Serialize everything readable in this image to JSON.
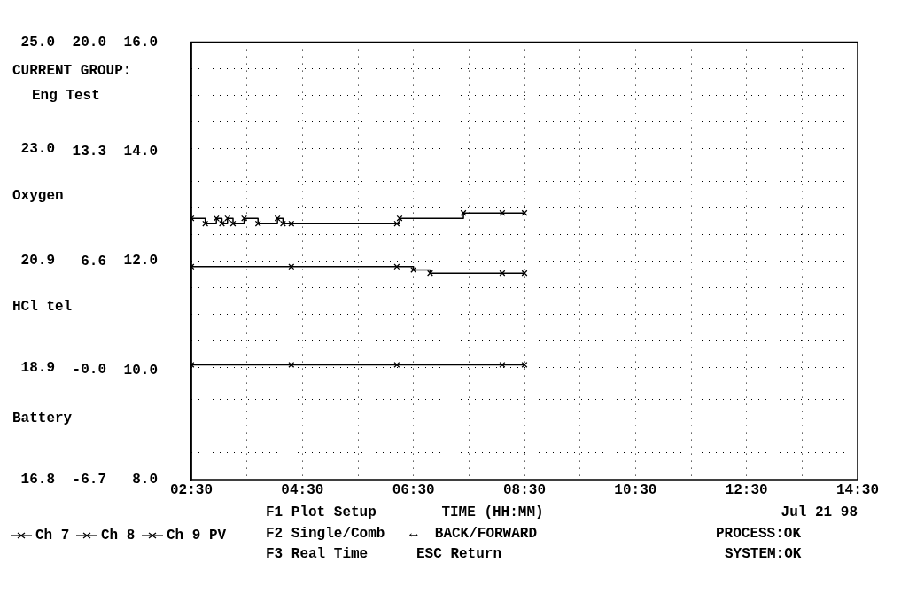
{
  "chart_data": {
    "type": "step",
    "xlabel": "TIME (HH:MM)",
    "series": [
      {
        "name": "Ch 7",
        "color": "#000000",
        "x": [
          2.5,
          2.75,
          2.95,
          3.05,
          3.15,
          3.25,
          3.45,
          3.7,
          4.05,
          4.15,
          4.3,
          6.2,
          6.25,
          7.4,
          8.1,
          8.5
        ],
        "values": [
          21.7,
          21.6,
          21.7,
          21.6,
          21.7,
          21.6,
          21.7,
          21.6,
          21.7,
          21.6,
          21.6,
          21.6,
          21.7,
          21.8,
          21.8,
          21.8
        ]
      },
      {
        "name": "Ch 8",
        "color": "#000000",
        "axis": "y2",
        "x": [
          2.5,
          4.3,
          6.2,
          6.5,
          6.8,
          8.1,
          8.5
        ],
        "values": [
          6.3,
          6.3,
          6.3,
          6.1,
          5.9,
          5.9,
          5.9
        ]
      },
      {
        "name": "Ch 9",
        "color": "#000000",
        "axis": "y3",
        "x": [
          2.5,
          4.3,
          6.2,
          8.1,
          8.5
        ],
        "values": [
          10.1,
          10.1,
          10.1,
          10.1,
          10.1
        ]
      }
    ],
    "xlim": [
      2.5,
      14.5
    ],
    "xticks": [
      {
        "value": 2.5,
        "label": "02:30"
      },
      {
        "value": 3.5,
        "label": null
      },
      {
        "value": 4.5,
        "label": "04:30"
      },
      {
        "value": 5.5,
        "label": null
      },
      {
        "value": 6.5,
        "label": "06:30"
      },
      {
        "value": 7.5,
        "label": null
      },
      {
        "value": 8.5,
        "label": "08:30"
      },
      {
        "value": 9.5,
        "label": null
      },
      {
        "value": 10.5,
        "label": "10:30"
      },
      {
        "value": 11.5,
        "label": null
      },
      {
        "value": 12.5,
        "label": "12:30"
      },
      {
        "value": 13.5,
        "label": null
      },
      {
        "value": 14.5,
        "label": "14:30"
      }
    ],
    "ylim": [
      16.8,
      25
    ],
    "yticks": [
      16.8,
      {
        "value": 17.3,
        "label": null
      },
      {
        "value": 17.8,
        "label": null
      },
      {
        "value": 18.3,
        "label": null
      },
      18.9,
      {
        "value": 19.4,
        "label": null
      },
      {
        "value": 19.9,
        "label": null
      },
      {
        "value": 20.4,
        "label": null
      },
      20.9,
      {
        "value": 21.4,
        "label": null
      },
      {
        "value": 21.9,
        "label": null
      },
      {
        "value": 22.4,
        "label": null
      },
      {
        "value": 23,
        "label": "23.0"
      },
      {
        "value": 23.5,
        "label": null
      },
      {
        "value": 24,
        "label": null
      },
      {
        "value": 24.5,
        "label": null
      },
      {
        "value": 25,
        "label": "25.0"
      }
    ],
    "y2lim": [
      -6.7,
      20
    ],
    "y2ticks": [
      -6.7,
      {
        "value": 0,
        "label": "-0.0"
      },
      6.6,
      13.3,
      {
        "value": 20,
        "label": "20.0"
      }
    ],
    "y3lim": [
      8,
      16
    ],
    "y3ticks": [
      {
        "value": 8,
        "label": "8.0"
      },
      {
        "value": 10,
        "label": "10.0"
      },
      {
        "value": 12,
        "label": "12.0"
      },
      {
        "value": 14,
        "label": "14.0"
      },
      {
        "value": 16,
        "label": "16.0"
      }
    ],
    "grid": true,
    "legend": "bottom left",
    "marker": "cross",
    "line_style": "solid",
    "annotations": [
      "CURRENT GROUP:",
      "Eng Test",
      "Oxygen",
      "HCl tel",
      "Battery",
      "F1 Plot Setup",
      "F2 Single/Comb",
      "F3 Real Time",
      "↔  BACK/FORWARD",
      "ESC Return",
      "Jul 21 98",
      "PROCESS:OK",
      "SYSTEM:OK",
      "PV"
    ]
  }
}
